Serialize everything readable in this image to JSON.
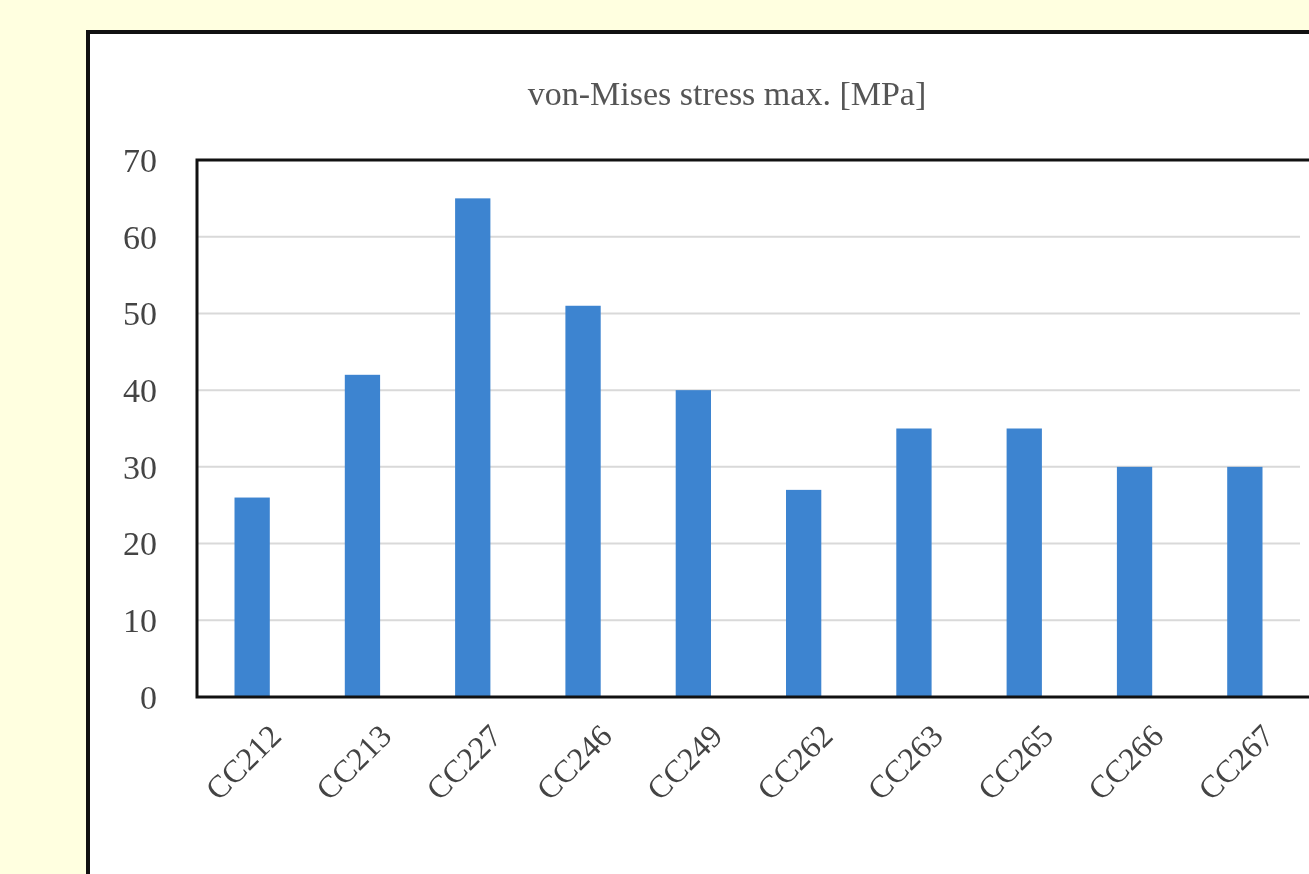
{
  "chart_data": {
    "type": "bar",
    "title": "von-Mises stress max. [MPa]",
    "categories": [
      "CC212",
      "CC213",
      "CC227",
      "CC246",
      "CC249",
      "CC262",
      "CC263",
      "CC265",
      "CC266",
      "CC267"
    ],
    "values": [
      26,
      42,
      65,
      51,
      40,
      27,
      35,
      35,
      30,
      30
    ],
    "color": "#3d84d0",
    "ylim": [
      0,
      70
    ],
    "yticks": [
      0,
      10,
      20,
      30,
      40,
      50,
      60,
      70
    ],
    "grid": true
  }
}
